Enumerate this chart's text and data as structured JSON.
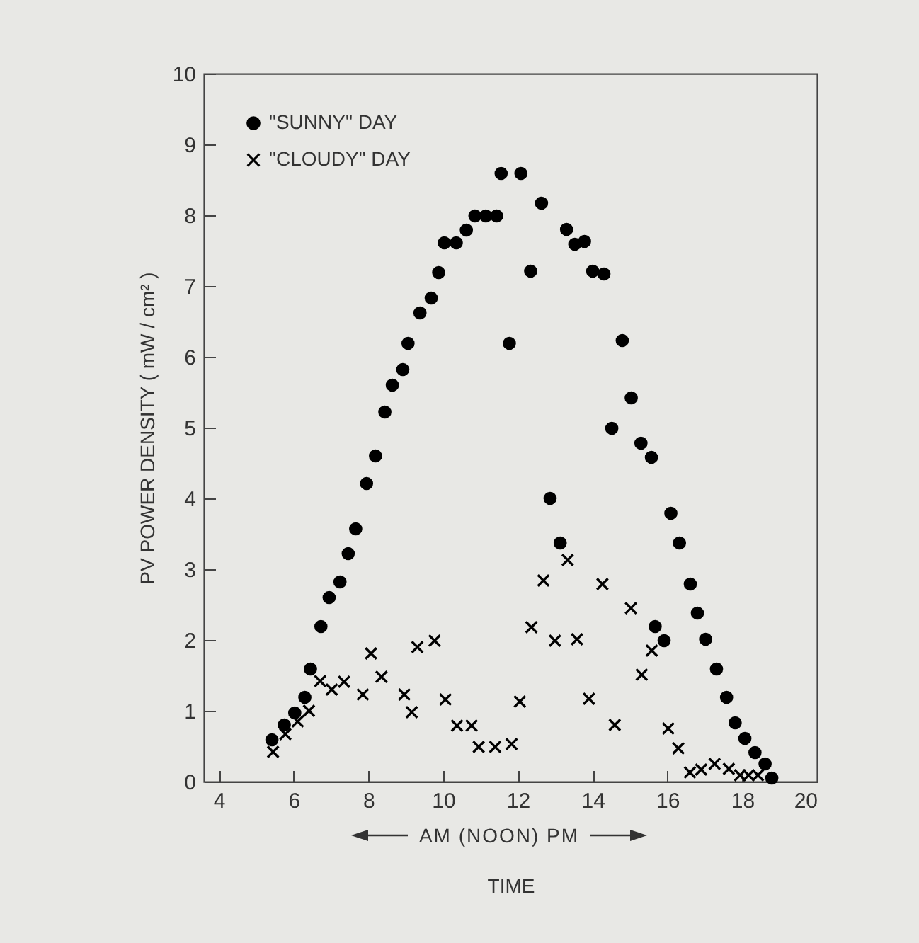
{
  "chart_data": {
    "type": "scatter",
    "xlabel": "TIME",
    "ylabel": "PV POWER DENSITY ( mW / cm² )",
    "annotations": [
      "AM (NOON) PM"
    ],
    "xlim": [
      3.6,
      20
    ],
    "xticks": [
      4,
      6,
      8,
      10,
      12,
      14,
      16,
      18,
      20
    ],
    "ylim": [
      0,
      10
    ],
    "yticks": [
      0,
      1,
      2,
      3,
      4,
      5,
      6,
      7,
      8,
      9,
      10
    ],
    "grid": false,
    "legend": "top left",
    "series": [
      {
        "name": "\"SUNNY\" DAY",
        "color": "#000000",
        "marker": "circle",
        "x": [
          5.42,
          5.75,
          6.03,
          6.3,
          6.45,
          6.73,
          6.95,
          7.24,
          7.46,
          7.66,
          7.95,
          8.19,
          8.44,
          8.64,
          8.92,
          9.06,
          9.38,
          9.68,
          9.88,
          10.03,
          10.35,
          10.62,
          10.85,
          11.14,
          11.43,
          11.55,
          11.77,
          12.08,
          12.34,
          12.63,
          12.86,
          13.13,
          13.3,
          13.52,
          13.78,
          14.0,
          14.3,
          14.51,
          14.79,
          15.03,
          15.29,
          15.57,
          15.67,
          15.91,
          16.09,
          16.32,
          16.61,
          16.8,
          17.02,
          17.31,
          17.58,
          17.81,
          18.07,
          18.34,
          18.61,
          18.79
        ],
        "values": [
          0.59,
          0.8,
          0.97,
          1.19,
          1.59,
          2.19,
          2.6,
          2.82,
          3.22,
          3.57,
          4.21,
          4.6,
          5.22,
          5.6,
          5.82,
          6.19,
          6.62,
          6.83,
          7.19,
          7.61,
          7.61,
          7.79,
          7.99,
          7.99,
          7.99,
          8.59,
          6.19,
          8.59,
          7.21,
          8.17,
          4.0,
          3.37,
          7.8,
          7.59,
          7.63,
          7.21,
          7.17,
          4.99,
          6.23,
          5.42,
          4.78,
          4.58,
          2.19,
          1.99,
          3.79,
          3.37,
          2.79,
          2.38,
          2.01,
          1.59,
          1.19,
          0.83,
          0.61,
          0.41,
          0.25,
          0.05
        ]
      },
      {
        "name": "\"CLOUDY\" DAY",
        "color": "#000000",
        "marker": "cross",
        "x": [
          5.45,
          5.78,
          6.11,
          6.41,
          6.71,
          7.02,
          7.35,
          7.85,
          8.07,
          8.35,
          8.96,
          9.16,
          9.31,
          9.77,
          10.06,
          10.37,
          10.76,
          10.95,
          11.39,
          11.83,
          12.05,
          12.36,
          12.68,
          12.99,
          13.33,
          13.58,
          13.9,
          14.26,
          14.59,
          15.02,
          15.31,
          15.58,
          16.02,
          16.29,
          16.6,
          16.9,
          17.26,
          17.64,
          17.94,
          18.17,
          18.42
        ],
        "values": [
          0.42,
          0.67,
          0.85,
          1.0,
          1.42,
          1.3,
          1.41,
          1.23,
          1.81,
          1.48,
          1.23,
          0.98,
          1.9,
          1.99,
          1.16,
          0.79,
          0.79,
          0.49,
          0.49,
          0.53,
          1.13,
          2.18,
          2.84,
          1.99,
          3.13,
          2.01,
          1.17,
          2.79,
          0.8,
          2.45,
          1.51,
          1.85,
          0.75,
          0.47,
          0.13,
          0.17,
          0.25,
          0.18,
          0.09,
          0.09,
          0.09
        ]
      }
    ]
  }
}
